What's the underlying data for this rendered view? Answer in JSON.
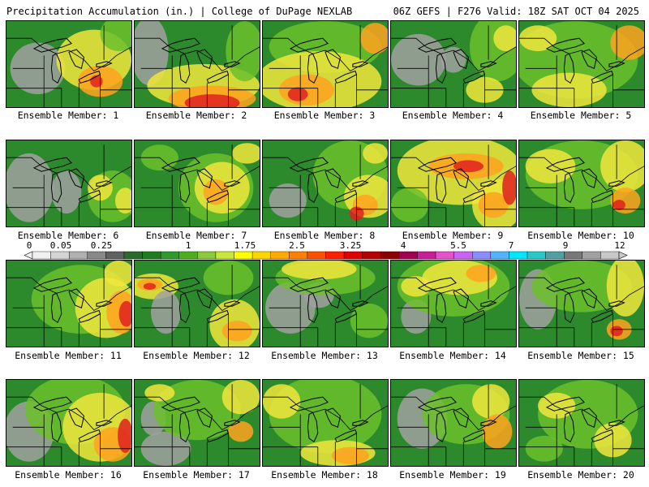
{
  "header": {
    "left": "Precipitation Accumulation (in.) | College of DuPage NEXLAB",
    "right": "06Z GEFS | F276 Valid: 18Z SAT OCT 04 2025"
  },
  "members": [
    {
      "label": "Ensemble Member: 1",
      "blobs": [
        [
          "gray",
          0.25,
          0.55,
          0.22,
          0.3
        ],
        [
          "yellow",
          0.7,
          0.45,
          0.3,
          0.35
        ],
        [
          "orange",
          0.75,
          0.7,
          0.18,
          0.18
        ],
        [
          "red",
          0.72,
          0.7,
          0.05,
          0.07
        ],
        [
          "lgreen",
          0.9,
          0.15,
          0.15,
          0.2
        ]
      ]
    },
    {
      "label": "Ensemble Member: 2",
      "blobs": [
        [
          "gray",
          0.12,
          0.35,
          0.15,
          0.4
        ],
        [
          "yellow",
          0.55,
          0.75,
          0.45,
          0.25
        ],
        [
          "orange",
          0.62,
          0.9,
          0.35,
          0.15
        ],
        [
          "red",
          0.62,
          0.95,
          0.22,
          0.1
        ],
        [
          "lgreen",
          0.88,
          0.35,
          0.15,
          0.35
        ]
      ]
    },
    {
      "label": "Ensemble Member: 3",
      "blobs": [
        [
          "lgreen",
          0.5,
          0.3,
          0.45,
          0.3
        ],
        [
          "yellow",
          0.45,
          0.7,
          0.5,
          0.35
        ],
        [
          "orange",
          0.35,
          0.8,
          0.22,
          0.18
        ],
        [
          "red",
          0.28,
          0.85,
          0.08,
          0.08
        ],
        [
          "orange",
          0.9,
          0.2,
          0.12,
          0.18
        ]
      ]
    },
    {
      "label": "Ensemble Member: 4",
      "blobs": [
        [
          "gray",
          0.22,
          0.45,
          0.22,
          0.3
        ],
        [
          "gray",
          0.5,
          0.45,
          0.1,
          0.15
        ],
        [
          "lgreen",
          0.85,
          0.3,
          0.22,
          0.4
        ],
        [
          "yellow",
          0.92,
          0.2,
          0.1,
          0.15
        ],
        [
          "yellow",
          0.75,
          0.8,
          0.15,
          0.15
        ]
      ]
    },
    {
      "label": "Ensemble Member: 5",
      "blobs": [
        [
          "lgreen",
          0.45,
          0.45,
          0.5,
          0.45
        ],
        [
          "yellow",
          0.4,
          0.8,
          0.3,
          0.2
        ],
        [
          "orange",
          0.88,
          0.25,
          0.15,
          0.2
        ],
        [
          "yellow",
          0.15,
          0.2,
          0.15,
          0.15
        ]
      ]
    },
    {
      "label": "Ensemble Member: 6",
      "blobs": [
        [
          "gray",
          0.18,
          0.55,
          0.2,
          0.4
        ],
        [
          "gray",
          0.48,
          0.6,
          0.12,
          0.25
        ],
        [
          "lgreen",
          0.85,
          0.65,
          0.2,
          0.3
        ],
        [
          "yellow",
          0.75,
          0.55,
          0.1,
          0.15
        ],
        [
          "yellow",
          0.95,
          0.7,
          0.08,
          0.15
        ]
      ]
    },
    {
      "label": "Ensemble Member: 7",
      "blobs": [
        [
          "lgreen",
          0.65,
          0.55,
          0.3,
          0.4
        ],
        [
          "yellow",
          0.7,
          0.55,
          0.22,
          0.3
        ],
        [
          "orange",
          0.65,
          0.6,
          0.1,
          0.15
        ],
        [
          "yellow",
          0.9,
          0.15,
          0.12,
          0.12
        ],
        [
          "lgreen",
          0.2,
          0.2,
          0.15,
          0.15
        ]
      ]
    },
    {
      "label": "Ensemble Member: 8",
      "blobs": [
        [
          "gray",
          0.2,
          0.7,
          0.15,
          0.2
        ],
        [
          "lgreen",
          0.7,
          0.4,
          0.3,
          0.4
        ],
        [
          "yellow",
          0.85,
          0.65,
          0.2,
          0.25
        ],
        [
          "orange",
          0.82,
          0.75,
          0.1,
          0.12
        ],
        [
          "red",
          0.75,
          0.85,
          0.06,
          0.08
        ],
        [
          "yellow",
          0.9,
          0.15,
          0.1,
          0.12
        ]
      ]
    },
    {
      "label": "Ensemble Member: 9",
      "blobs": [
        [
          "yellow",
          0.55,
          0.35,
          0.5,
          0.4
        ],
        [
          "orange",
          0.6,
          0.3,
          0.3,
          0.15
        ],
        [
          "red",
          0.62,
          0.3,
          0.12,
          0.07
        ],
        [
          "yellow",
          0.85,
          0.75,
          0.2,
          0.3
        ],
        [
          "orange",
          0.82,
          0.75,
          0.12,
          0.15
        ],
        [
          "red",
          0.95,
          0.55,
          0.06,
          0.2
        ],
        [
          "lgreen",
          0.15,
          0.75,
          0.15,
          0.2
        ]
      ]
    },
    {
      "label": "Ensemble Member: 10",
      "blobs": [
        [
          "lgreen",
          0.5,
          0.4,
          0.45,
          0.4
        ],
        [
          "yellow",
          0.25,
          0.3,
          0.2,
          0.2
        ],
        [
          "yellow",
          0.85,
          0.3,
          0.2,
          0.3
        ],
        [
          "orange",
          0.85,
          0.7,
          0.12,
          0.15
        ],
        [
          "red",
          0.8,
          0.75,
          0.05,
          0.06
        ]
      ]
    },
    {
      "label": "Ensemble Member: 11",
      "blobs": [
        [
          "lgreen",
          0.6,
          0.45,
          0.4,
          0.4
        ],
        [
          "yellow",
          0.8,
          0.55,
          0.25,
          0.35
        ],
        [
          "orange",
          0.92,
          0.6,
          0.12,
          0.25
        ],
        [
          "red",
          0.96,
          0.62,
          0.06,
          0.15
        ],
        [
          "yellow",
          0.9,
          0.15,
          0.12,
          0.15
        ]
      ]
    },
    {
      "label": "Ensemble Member: 12",
      "blobs": [
        [
          "yellow",
          0.15,
          0.3,
          0.2,
          0.15
        ],
        [
          "orange",
          0.12,
          0.28,
          0.1,
          0.07
        ],
        [
          "red",
          0.12,
          0.3,
          0.05,
          0.04
        ],
        [
          "gray",
          0.25,
          0.6,
          0.12,
          0.25
        ],
        [
          "yellow",
          0.8,
          0.75,
          0.2,
          0.3
        ],
        [
          "orange",
          0.82,
          0.82,
          0.12,
          0.12
        ],
        [
          "lgreen",
          0.75,
          0.2,
          0.2,
          0.2
        ]
      ]
    },
    {
      "label": "Ensemble Member: 13",
      "blobs": [
        [
          "gray",
          0.22,
          0.55,
          0.2,
          0.3
        ],
        [
          "gray",
          0.45,
          0.4,
          0.12,
          0.15
        ],
        [
          "lgreen",
          0.5,
          0.2,
          0.4,
          0.2
        ],
        [
          "yellow",
          0.45,
          0.1,
          0.3,
          0.12
        ],
        [
          "lgreen",
          0.85,
          0.7,
          0.15,
          0.2
        ]
      ]
    },
    {
      "label": "Ensemble Member: 14",
      "blobs": [
        [
          "gray",
          0.2,
          0.65,
          0.12,
          0.2
        ],
        [
          "lgreen",
          0.5,
          0.3,
          0.45,
          0.35
        ],
        [
          "yellow",
          0.55,
          0.2,
          0.3,
          0.2
        ],
        [
          "orange",
          0.72,
          0.15,
          0.12,
          0.1
        ],
        [
          "yellow",
          0.2,
          0.3,
          0.12,
          0.12
        ]
      ]
    },
    {
      "label": "Ensemble Member: 15",
      "blobs": [
        [
          "gray",
          0.15,
          0.45,
          0.15,
          0.35
        ],
        [
          "lgreen",
          0.5,
          0.3,
          0.4,
          0.3
        ],
        [
          "yellow",
          0.85,
          0.3,
          0.15,
          0.35
        ],
        [
          "orange",
          0.8,
          0.8,
          0.1,
          0.12
        ],
        [
          "red",
          0.78,
          0.82,
          0.05,
          0.06
        ]
      ]
    },
    {
      "label": "Ensemble Member: 16",
      "blobs": [
        [
          "gray",
          0.18,
          0.6,
          0.2,
          0.35
        ],
        [
          "lgreen",
          0.55,
          0.35,
          0.4,
          0.4
        ],
        [
          "yellow",
          0.75,
          0.55,
          0.3,
          0.4
        ],
        [
          "orange",
          0.85,
          0.75,
          0.15,
          0.2
        ],
        [
          "red",
          0.95,
          0.65,
          0.06,
          0.2
        ]
      ]
    },
    {
      "label": "Ensemble Member: 17",
      "blobs": [
        [
          "gray",
          0.25,
          0.8,
          0.2,
          0.2
        ],
        [
          "gray",
          0.15,
          0.45,
          0.1,
          0.2
        ],
        [
          "lgreen",
          0.5,
          0.35,
          0.35,
          0.35
        ],
        [
          "yellow",
          0.85,
          0.2,
          0.15,
          0.2
        ],
        [
          "orange",
          0.85,
          0.6,
          0.1,
          0.12
        ],
        [
          "yellow",
          0.2,
          0.15,
          0.12,
          0.1
        ]
      ]
    },
    {
      "label": "Ensemble Member: 18",
      "blobs": [
        [
          "lgreen",
          0.5,
          0.4,
          0.45,
          0.45
        ],
        [
          "yellow",
          0.6,
          0.85,
          0.3,
          0.15
        ],
        [
          "orange",
          0.7,
          0.88,
          0.15,
          0.1
        ],
        [
          "yellow",
          0.15,
          0.25,
          0.15,
          0.2
        ]
      ]
    },
    {
      "label": "Ensemble Member: 19",
      "blobs": [
        [
          "gray",
          0.25,
          0.45,
          0.2,
          0.35
        ],
        [
          "lgreen",
          0.6,
          0.4,
          0.35,
          0.35
        ],
        [
          "yellow",
          0.8,
          0.25,
          0.15,
          0.2
        ],
        [
          "orange",
          0.85,
          0.6,
          0.12,
          0.2
        ]
      ]
    },
    {
      "label": "Ensemble Member: 20",
      "blobs": [
        [
          "lgreen",
          0.55,
          0.4,
          0.4,
          0.4
        ],
        [
          "yellow",
          0.3,
          0.3,
          0.15,
          0.15
        ],
        [
          "yellow",
          0.75,
          0.7,
          0.15,
          0.2
        ],
        [
          "lgreen",
          0.2,
          0.8,
          0.15,
          0.15
        ]
      ]
    }
  ],
  "legend": {
    "ticks": [
      "0",
      "0.05",
      "0.25",
      "1",
      "1.75",
      "2.5",
      "3.25",
      "4",
      "5.5",
      "7",
      "9",
      "12"
    ],
    "colors": [
      "#f0f0f0",
      "#d4d4d4",
      "#b0b0b0",
      "#888888",
      "#606060",
      "#2a6a2a",
      "#1e7d1e",
      "#2e9a2e",
      "#4fae20",
      "#8cc83c",
      "#c8e83c",
      "#ffff00",
      "#ffd700",
      "#ffaa00",
      "#ff8000",
      "#ff5000",
      "#ff2000",
      "#e00000",
      "#b40000",
      "#8c0000",
      "#a00050",
      "#c81e96",
      "#e650c8",
      "#c864f0",
      "#8c8cff",
      "#50b4ff",
      "#00e6ff",
      "#28c8c8",
      "#50a0a0",
      "#787878",
      "#a0a0a0",
      "#c8c8c8"
    ]
  },
  "colors": {
    "dkgreen": "#2c8a2c",
    "lgreen": "#6cbf2c",
    "yellow": "#f0e63c",
    "orange": "#ffa21e",
    "red": "#e02020",
    "gray": "#a0a0a0"
  }
}
